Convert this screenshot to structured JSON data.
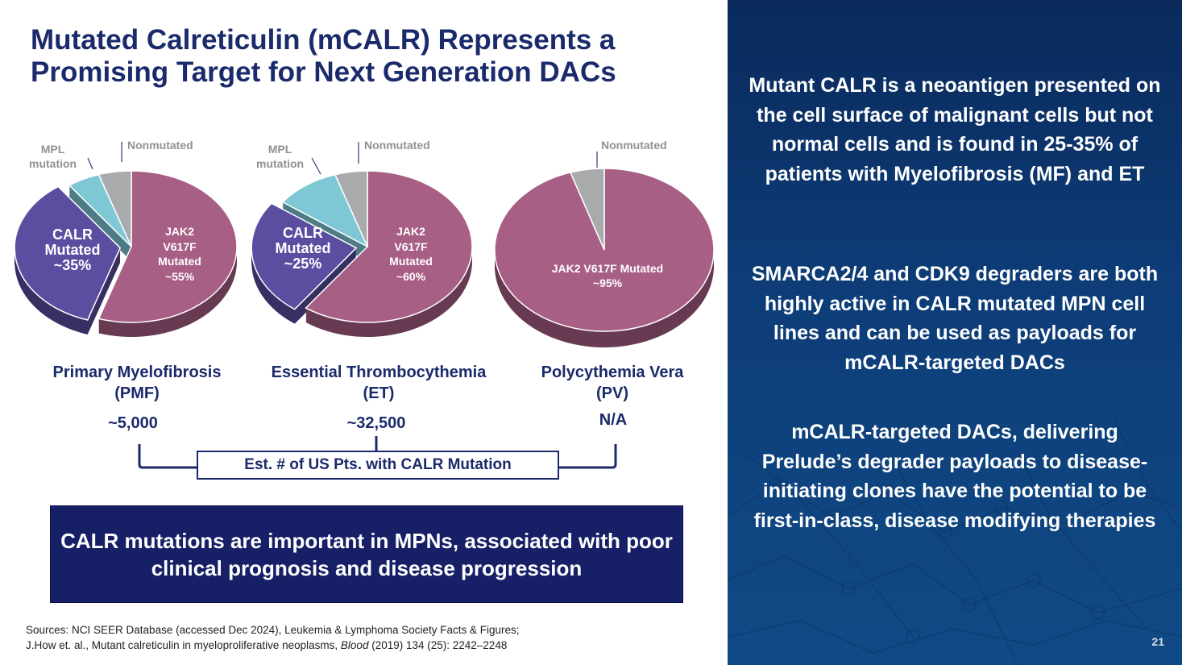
{
  "title": "Mutated Calreticulin (mCALR) Represents a Promising Target for Next Generation DACs",
  "chart_data": [
    {
      "type": "pie",
      "title": "Primary Myelofibrosis (PMF)",
      "slices": [
        {
          "label": "JAK2 V617F Mutated",
          "value": 55,
          "color": "#a85f85"
        },
        {
          "label": "CALR Mutated",
          "value": 35,
          "color": "#5b4ea0",
          "exploded": true
        },
        {
          "label": "MPL mutation",
          "value": 5,
          "color": "#7ec8d6"
        },
        {
          "label": "Nonmutated",
          "value": 5,
          "color": "#a9aaac"
        }
      ]
    },
    {
      "type": "pie",
      "title": "Essential Thrombocythemia (ET)",
      "slices": [
        {
          "label": "JAK2 V617F Mutated",
          "value": 60,
          "color": "#a85f85"
        },
        {
          "label": "CALR Mutated",
          "value": 25,
          "color": "#5b4ea0",
          "exploded": true
        },
        {
          "label": "MPL mutation",
          "value": 10,
          "color": "#7ec8d6"
        },
        {
          "label": "Nonmutated",
          "value": 5,
          "color": "#a9aaac"
        }
      ]
    },
    {
      "type": "pie",
      "title": "Polycythemia Vera (PV)",
      "slices": [
        {
          "label": "JAK2 V617F Mutated",
          "value": 95,
          "color": "#a85f85"
        },
        {
          "label": "Nonmutated",
          "value": 5,
          "color": "#a9aaac"
        }
      ]
    }
  ],
  "labels": {
    "pmf": {
      "jak2": [
        "JAK2",
        "V617F",
        "Mutated",
        "~55%"
      ],
      "calr": [
        "CALR",
        "Mutated",
        "~35%"
      ],
      "mpl": [
        "MPL",
        "mutation"
      ],
      "non": "Nonmutated"
    },
    "et": {
      "jak2": [
        "JAK2",
        "V617F",
        "Mutated",
        "~60%"
      ],
      "calr": [
        "CALR",
        "Mutated",
        "~25%"
      ],
      "mpl": [
        "MPL",
        "mutation"
      ],
      "non": "Nonmutated"
    },
    "pv": {
      "jak2": [
        "JAK2 V617F Mutated",
        "~95%"
      ],
      "non": "Nonmutated"
    }
  },
  "diseases": [
    {
      "name": "Primary Myelofibrosis",
      "abbr": "(PMF)",
      "count": "~5,000"
    },
    {
      "name": "Essential Thrombocythemia",
      "abbr": "(ET)",
      "count": "~32,500"
    },
    {
      "name": "Polycythemia Vera",
      "abbr": "(PV)",
      "count": "N/A"
    }
  ],
  "est_label": "Est. # of US Pts. with CALR Mutation",
  "callout": "CALR mutations are important in MPNs, associated with poor clinical prognosis and disease progression",
  "sources": {
    "line1": "Sources: NCI SEER Database (accessed Dec 2024), Leukemia & Lymphoma Society Facts & Figures;",
    "line2a": "J.How et. al., Mutant calreticulin in myeloproliferative neoplasms, ",
    "line2b": "Blood",
    "line2c": " (2019) 134 (25): 2242–2248"
  },
  "panel": {
    "p1": "Mutant CALR is a neoantigen presented on the cell surface of malignant cells but not normal cells and is found in 25-35% of patients with Myelofibrosis (MF) and ET",
    "p2": "SMARCA2/4 and CDK9 degraders are both highly active in CALR mutated MPN cell lines and can be used as payloads for mCALR-targeted DACs",
    "p3": "mCALR-targeted DACs, delivering Prelude’s degrader payloads to disease-initiating clones have the potential to be first-in-class, disease modifying therapies",
    "page": "21"
  }
}
